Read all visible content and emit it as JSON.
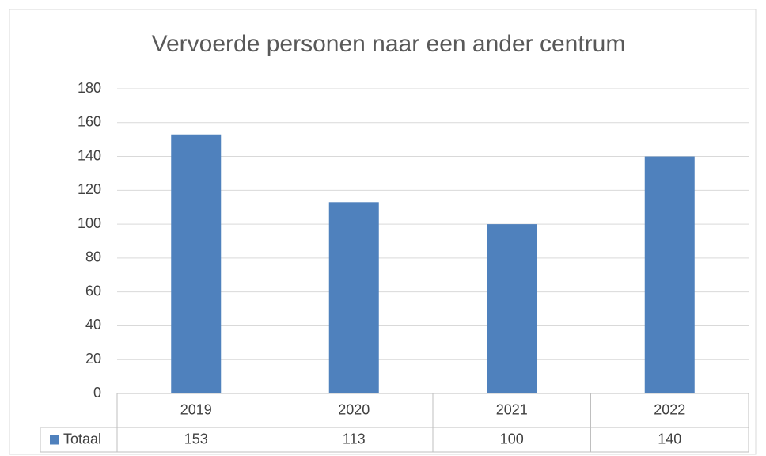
{
  "chart_data": {
    "type": "bar",
    "title": "Vervoerde personen naar een ander centrum",
    "categories": [
      "2019",
      "2020",
      "2021",
      "2022"
    ],
    "series": [
      {
        "name": "Totaal",
        "color": "#4f81bd",
        "values": [
          153,
          113,
          100,
          140
        ]
      }
    ],
    "ylim": [
      0,
      180
    ],
    "yticks": [
      0,
      20,
      40,
      60,
      80,
      100,
      120,
      140,
      160,
      180
    ],
    "grid": true,
    "data_table": true
  }
}
